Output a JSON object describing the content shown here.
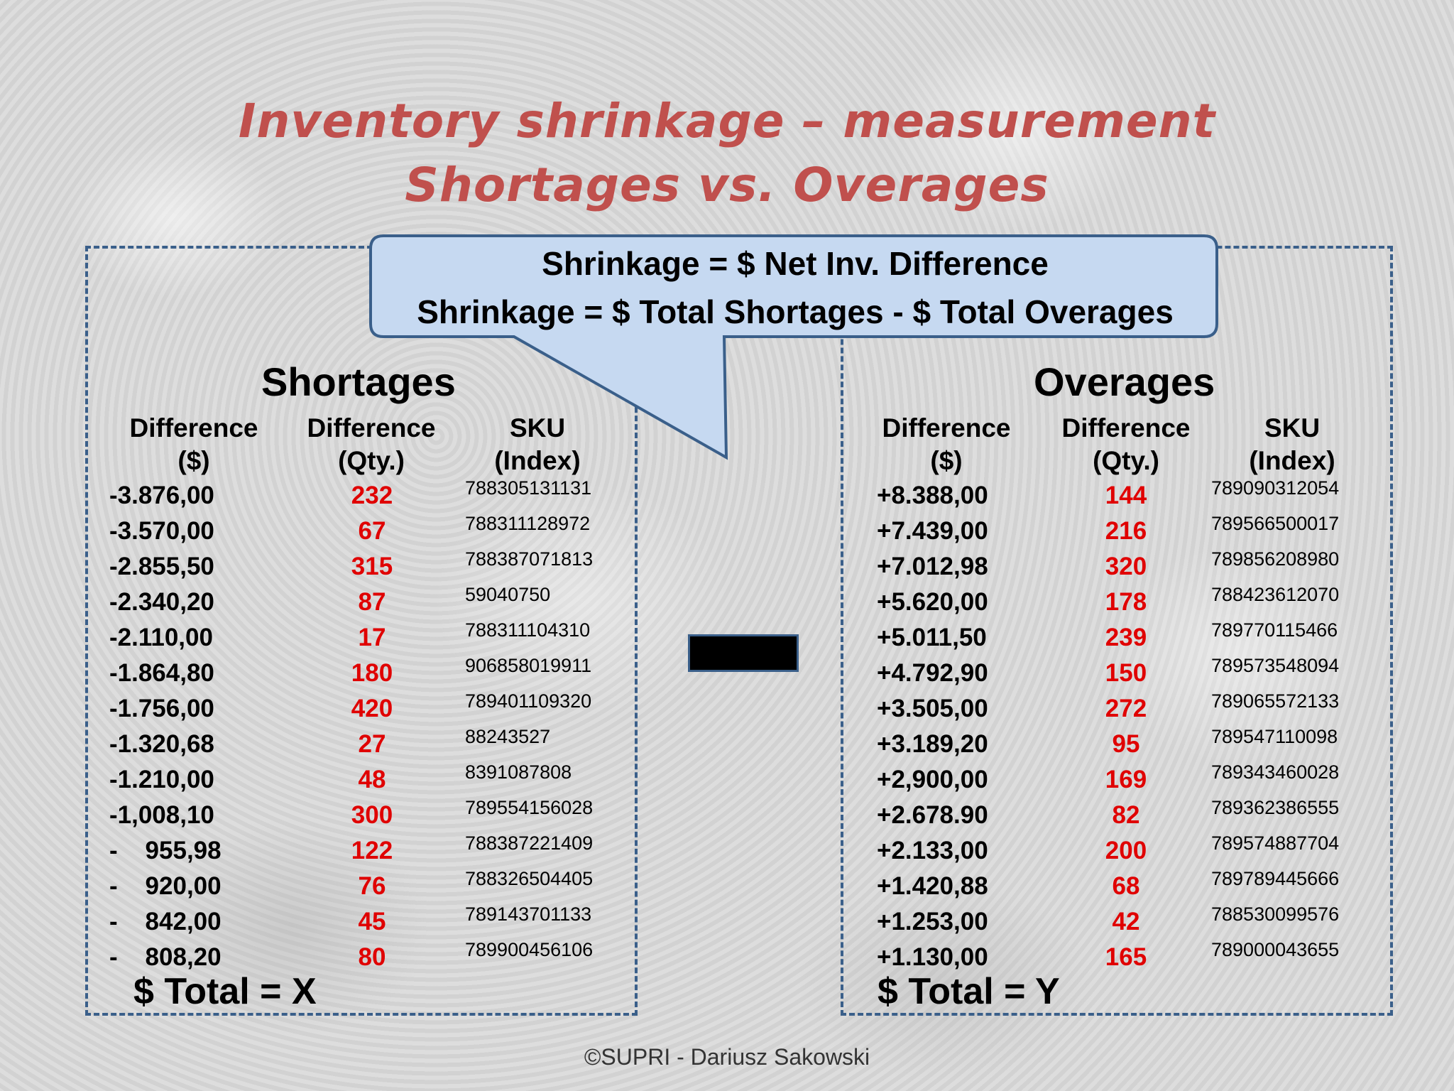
{
  "title": {
    "line1": "Inventory shrinkage – measurement",
    "line2": "Shortages vs. Overages"
  },
  "callout": {
    "line1": "Shrinkage = $ Net Inv. Difference",
    "line2": "Shrinkage = $ Total Shortages - $ Total Overages",
    "fill": "#c6d9f1",
    "stroke": "#3a5f8a"
  },
  "shortages": {
    "title": "Shortages",
    "headers": [
      {
        "line1": "Difference",
        "line2": "($)"
      },
      {
        "line1": "Difference",
        "line2": "(Qty.)"
      },
      {
        "line1": "SKU",
        "line2": "(Index)"
      }
    ],
    "rows": [
      {
        "amount": "-3.876,00",
        "qty": "232",
        "sku": "788305131131"
      },
      {
        "amount": "-3.570,00",
        "qty": "67",
        "sku": "788311128972"
      },
      {
        "amount": "-2.855,50",
        "qty": "315",
        "sku": "788387071813"
      },
      {
        "amount": "-2.340,20",
        "qty": "87",
        "sku": "59040750"
      },
      {
        "amount": "-2.110,00",
        "qty": "17",
        "sku": "788311104310"
      },
      {
        "amount": "-1.864,80",
        "qty": "180",
        "sku": "906858019911"
      },
      {
        "amount": "-1.756,00",
        "qty": "420",
        "sku": "789401109320"
      },
      {
        "amount": "-1.320,68",
        "qty": "27",
        "sku": "88243527"
      },
      {
        "amount": "-1.210,00",
        "qty": "48",
        "sku": "8391087808"
      },
      {
        "amount": "-1,008,10",
        "qty": "300",
        "sku": "789554156028"
      },
      {
        "amount": "-    955,98",
        "qty": "122",
        "sku": "788387221409"
      },
      {
        "amount": "-    920,00",
        "qty": "76",
        "sku": "788326504405"
      },
      {
        "amount": "-    842,00",
        "qty": "45",
        "sku": "789143701133"
      },
      {
        "amount": "-    808,20",
        "qty": "80",
        "sku": "789900456106"
      }
    ],
    "total": "$ Total = X"
  },
  "overages": {
    "title": "Overages",
    "headers": [
      {
        "line1": "Difference",
        "line2": "($)"
      },
      {
        "line1": "Difference",
        "line2": "(Qty.)"
      },
      {
        "line1": "SKU",
        "line2": "(Index)"
      }
    ],
    "rows": [
      {
        "amount": "+8.388,00",
        "qty": "144",
        "sku": "789090312054"
      },
      {
        "amount": "+7.439,00",
        "qty": "216",
        "sku": "789566500017"
      },
      {
        "amount": "+7.012,98",
        "qty": "320",
        "sku": "789856208980"
      },
      {
        "amount": "+5.620,00",
        "qty": "178",
        "sku": "788423612070"
      },
      {
        "amount": "+5.011,50",
        "qty": "239",
        "sku": "789770115466"
      },
      {
        "amount": "+4.792,90",
        "qty": "150",
        "sku": "789573548094"
      },
      {
        "amount": "+3.505,00",
        "qty": "272",
        "sku": "789065572133"
      },
      {
        "amount": "+3.189,20",
        "qty": "95",
        "sku": "789547110098"
      },
      {
        "amount": "+2,900,00",
        "qty": "169",
        "sku": "789343460028"
      },
      {
        "amount": "+2.678.90",
        "qty": "82",
        "sku": "789362386555"
      },
      {
        "amount": "+2.133,00",
        "qty": "200",
        "sku": "789574887704"
      },
      {
        "amount": "+1.420,88",
        "qty": "68",
        "sku": "789789445666"
      },
      {
        "amount": "+1.253,00",
        "qty": "42",
        "sku": "788530099576"
      },
      {
        "amount": "+1.130,00",
        "qty": "165",
        "sku": "789000043655"
      }
    ],
    "total": "$ Total = Y"
  },
  "footer": "©SUPRI - Dariusz Sakowski",
  "colors": {
    "title": "#c0504d",
    "quantity": "#e00000",
    "border": "#3a5f8a"
  }
}
